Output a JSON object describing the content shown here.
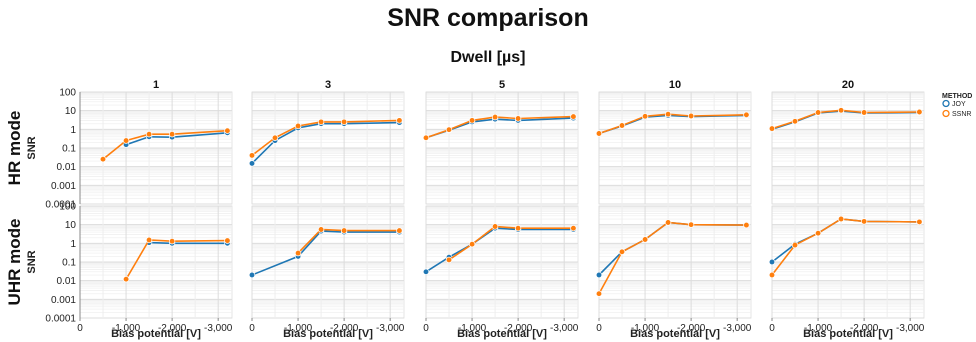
{
  "chart_data": {
    "type": "line",
    "title": "SNR comparison",
    "facet_title": "Dwell [µs]",
    "ylabel": "SNR",
    "xlabel": "Bias potential [V]",
    "yscale": "log",
    "ylim": [
      0.0001,
      100
    ],
    "y_ticks": [
      100,
      10,
      1,
      0.1,
      0.01,
      0.001,
      0.0001
    ],
    "y_tick_labels": [
      "100",
      "10",
      "1",
      "0.1",
      "0.01",
      "0.001",
      "0.0001"
    ],
    "xlim": [
      0,
      -3300
    ],
    "x_ticks": [
      0,
      -1000,
      -2000,
      -3000
    ],
    "x_tick_labels": [
      "0",
      "-1,000",
      "-2,000",
      "-3,000"
    ],
    "grid": true,
    "legend": {
      "title": "METHOD",
      "position": "right",
      "entries": [
        {
          "name": "JOY",
          "color": "#1f77b4"
        },
        {
          "name": "SSNR",
          "color": "#ff7f0e"
        }
      ]
    },
    "columns": [
      "1",
      "3",
      "5",
      "10",
      "20"
    ],
    "rows": [
      "HR mode",
      "UHR mode"
    ],
    "panels": [
      {
        "row": "HR mode",
        "column": "1",
        "series": [
          {
            "name": "JOY",
            "x": [
              -1000,
              -1500,
              -2000,
              -3200
            ],
            "y": [
              0.15,
              0.4,
              0.38,
              0.65
            ]
          },
          {
            "name": "SSNR",
            "x": [
              -500,
              -1000,
              -1500,
              -2000,
              -3200
            ],
            "y": [
              0.025,
              0.25,
              0.55,
              0.55,
              0.85
            ]
          }
        ]
      },
      {
        "row": "HR mode",
        "column": "3",
        "series": [
          {
            "name": "JOY",
            "x": [
              0,
              -500,
              -1000,
              -1500,
              -2000,
              -3200
            ],
            "y": [
              0.015,
              0.25,
              1.2,
              2.0,
              2.0,
              2.3
            ]
          },
          {
            "name": "SSNR",
            "x": [
              0,
              -500,
              -1000,
              -1500,
              -2000,
              -3200
            ],
            "y": [
              0.04,
              0.35,
              1.5,
              2.5,
              2.5,
              3.0
            ]
          }
        ]
      },
      {
        "row": "HR mode",
        "column": "5",
        "series": [
          {
            "name": "JOY",
            "x": [
              0,
              -500,
              -1000,
              -1500,
              -2000,
              -3200
            ],
            "y": [
              0.35,
              0.9,
              2.5,
              3.5,
              3.0,
              4.0
            ]
          },
          {
            "name": "SSNR",
            "x": [
              0,
              -500,
              -1000,
              -1500,
              -2000,
              -3200
            ],
            "y": [
              0.35,
              0.95,
              3.0,
              4.5,
              3.8,
              4.8
            ]
          }
        ]
      },
      {
        "row": "HR mode",
        "column": "10",
        "series": [
          {
            "name": "JOY",
            "x": [
              0,
              -500,
              -1000,
              -1500,
              -2000,
              -3200
            ],
            "y": [
              0.6,
              1.5,
              4.5,
              5.5,
              4.8,
              5.5
            ]
          },
          {
            "name": "SSNR",
            "x": [
              0,
              -500,
              -1000,
              -1500,
              -2000,
              -3200
            ],
            "y": [
              0.6,
              1.6,
              5.0,
              6.5,
              5.2,
              6.0
            ]
          }
        ]
      },
      {
        "row": "HR mode",
        "column": "20",
        "series": [
          {
            "name": "JOY",
            "x": [
              0,
              -500,
              -1000,
              -1500,
              -2000,
              -3200
            ],
            "y": [
              1.0,
              2.5,
              7.5,
              9.5,
              7.5,
              8.0
            ]
          },
          {
            "name": "SSNR",
            "x": [
              0,
              -500,
              -1000,
              -1500,
              -2000,
              -3200
            ],
            "y": [
              1.1,
              2.7,
              8.0,
              10.5,
              8.0,
              8.5
            ]
          }
        ]
      },
      {
        "row": "UHR mode",
        "column": "1",
        "series": [
          {
            "name": "JOY",
            "x": [
              -1500,
              -2000,
              -3200
            ],
            "y": [
              1.1,
              1.0,
              1.0
            ]
          },
          {
            "name": "SSNR",
            "x": [
              -1000,
              -1500,
              -2000,
              -3200
            ],
            "y": [
              0.012,
              1.5,
              1.3,
              1.4
            ]
          }
        ]
      },
      {
        "row": "UHR mode",
        "column": "3",
        "series": [
          {
            "name": "JOY",
            "x": [
              0,
              -1000,
              -1500,
              -2000,
              -3200
            ],
            "y": [
              0.02,
              0.2,
              4.5,
              4.0,
              4.0
            ]
          },
          {
            "name": "SSNR",
            "x": [
              -1000,
              -1500,
              -2000,
              -3200
            ],
            "y": [
              0.3,
              5.5,
              4.8,
              4.8
            ]
          }
        ]
      },
      {
        "row": "UHR mode",
        "column": "5",
        "series": [
          {
            "name": "JOY",
            "x": [
              0,
              -500,
              -1000,
              -1500,
              -2000,
              -3200
            ],
            "y": [
              0.03,
              0.18,
              0.9,
              6.5,
              5.5,
              5.5
            ]
          },
          {
            "name": "SSNR",
            "x": [
              -500,
              -1000,
              -1500,
              -2000,
              -3200
            ],
            "y": [
              0.13,
              0.9,
              8.0,
              6.5,
              6.5
            ]
          }
        ]
      },
      {
        "row": "UHR mode",
        "column": "10",
        "series": [
          {
            "name": "JOY",
            "x": [
              0,
              -500,
              -1000,
              -1500,
              -2000,
              -3200
            ],
            "y": [
              0.02,
              0.35,
              1.6,
              13,
              10,
              9.5
            ]
          },
          {
            "name": "SSNR",
            "x": [
              0,
              -500,
              -1000,
              -1500,
              -2000,
              -3200
            ],
            "y": [
              0.002,
              0.35,
              1.6,
              13,
              10,
              9.5
            ]
          }
        ]
      },
      {
        "row": "UHR mode",
        "column": "20",
        "series": [
          {
            "name": "JOY",
            "x": [
              0,
              -500,
              -1000,
              -1500,
              -2000,
              -3200
            ],
            "y": [
              0.1,
              0.9,
              3.5,
              20,
              15,
              14
            ]
          },
          {
            "name": "SSNR",
            "x": [
              0,
              -500,
              -1000,
              -1500,
              -2000,
              -3200
            ],
            "y": [
              0.02,
              0.8,
              3.5,
              20,
              15,
              14
            ]
          }
        ]
      }
    ]
  }
}
